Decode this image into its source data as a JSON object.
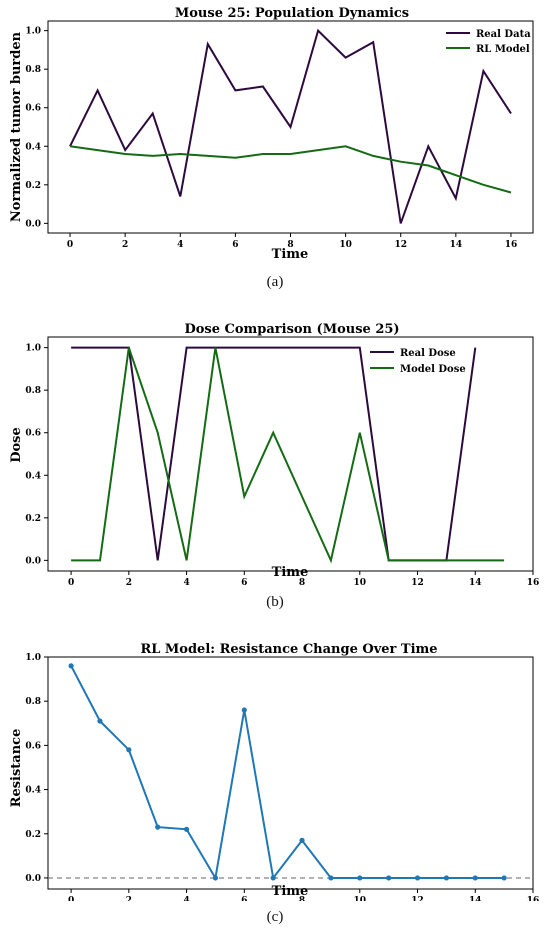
{
  "charts": [
    {
      "type": "line",
      "title": "Mouse 25: Population Dynamics",
      "xlabel": "Time",
      "ylabel": "Normalized tumor burden",
      "xlim": [
        -0.8,
        16.8
      ],
      "ylim": [
        -0.05,
        1.05
      ],
      "xticks": [
        0,
        2,
        4,
        6,
        8,
        10,
        12,
        14,
        16
      ],
      "yticks": [
        0.0,
        0.2,
        0.4,
        0.6,
        0.8,
        1.0
      ],
      "legend_position": "top-right",
      "series": [
        {
          "name": "Real Data",
          "color": "#2d0a3e",
          "x": [
            0,
            1,
            2,
            3,
            4,
            5,
            6,
            7,
            8,
            9,
            10,
            11,
            12,
            13,
            14,
            15,
            16
          ],
          "values": [
            0.4,
            0.69,
            0.38,
            0.57,
            0.14,
            0.93,
            0.69,
            0.71,
            0.5,
            1.0,
            0.86,
            0.94,
            0.0,
            0.4,
            0.13,
            0.79,
            0.57
          ]
        },
        {
          "name": "RL Model",
          "color": "#156b15",
          "x": [
            0,
            1,
            2,
            3,
            4,
            5,
            6,
            7,
            8,
            9,
            10,
            11,
            12,
            13,
            14,
            15,
            16
          ],
          "values": [
            0.4,
            0.38,
            0.36,
            0.35,
            0.36,
            0.35,
            0.34,
            0.36,
            0.36,
            0.38,
            0.4,
            0.35,
            0.32,
            0.3,
            0.25,
            0.2,
            0.16
          ]
        }
      ]
    },
    {
      "type": "line",
      "title": "Dose Comparison (Mouse 25)",
      "xlabel": "Time",
      "ylabel": "Dose",
      "xlim": [
        -0.8,
        16
      ],
      "ylim": [
        -0.05,
        1.05
      ],
      "xticks": [
        0,
        2,
        4,
        6,
        8,
        10,
        12,
        14,
        16
      ],
      "yticks": [
        0.0,
        0.2,
        0.4,
        0.6,
        0.8,
        1.0
      ],
      "legend_position": "top-right",
      "series": [
        {
          "name": "Real Dose",
          "color": "#2d0a3e",
          "x": [
            0,
            1,
            2,
            3,
            4,
            5,
            6,
            7,
            8,
            9,
            10,
            11,
            12,
            13,
            14
          ],
          "values": [
            1,
            1,
            1,
            0,
            1,
            1,
            1,
            1,
            1,
            1,
            1,
            0,
            0,
            0,
            1
          ]
        },
        {
          "name": "Model Dose",
          "color": "#156b15",
          "x": [
            0,
            1,
            2,
            3,
            4,
            5,
            6,
            7,
            8,
            9,
            10,
            11,
            12,
            13,
            14,
            15
          ],
          "values": [
            0,
            0,
            1.0,
            0.6,
            0,
            1.0,
            0.3,
            0.6,
            0.3,
            0,
            0.6,
            0,
            0,
            0,
            0,
            0
          ]
        }
      ]
    },
    {
      "type": "line",
      "title": "RL Model: Resistance Change Over Time",
      "xlabel": "Time",
      "ylabel": "Resistance",
      "xlim": [
        -0.8,
        16
      ],
      "ylim": [
        -0.05,
        1.0
      ],
      "xticks": [
        0,
        2,
        4,
        6,
        8,
        10,
        12,
        14,
        16
      ],
      "yticks": [
        0.0,
        0.2,
        0.4,
        0.6,
        0.8,
        1.0
      ],
      "hline": 0.0,
      "markers": true,
      "series": [
        {
          "color": "#1f77b4",
          "x": [
            0,
            1,
            2,
            3,
            4,
            5,
            6,
            7,
            8,
            9,
            10,
            11,
            12,
            13,
            14,
            15
          ],
          "values": [
            0.96,
            0.71,
            0.58,
            0.23,
            0.22,
            0.0,
            0.76,
            0.0,
            0.17,
            0.0,
            0.0,
            0.0,
            0.0,
            0.0,
            0.0,
            0.0
          ]
        }
      ]
    }
  ],
  "captions": [
    "(a)",
    "(b)",
    "(c)"
  ]
}
